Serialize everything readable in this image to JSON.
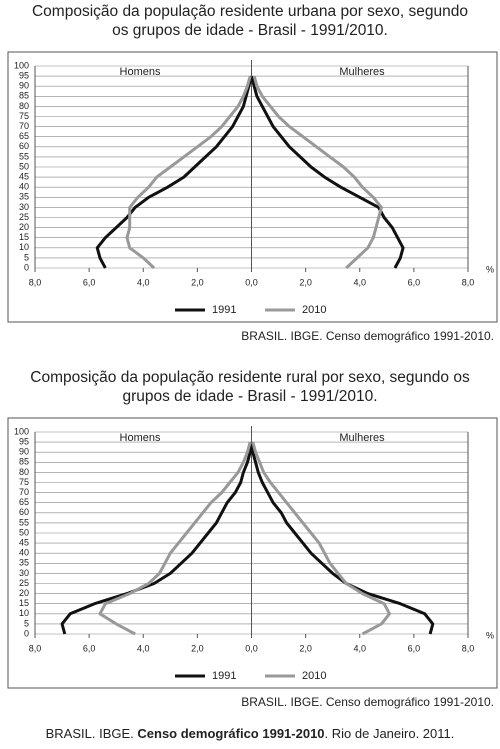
{
  "chart_data": [
    {
      "type": "line",
      "title": [
        "Composição da população residente urbana por sexo, segundo",
        "os grupos de idade - Brasil - 1991/2010."
      ],
      "left_label": "Homens",
      "right_label": "Mulheres",
      "x_unit": "%",
      "y": [
        0,
        5,
        10,
        15,
        20,
        25,
        30,
        35,
        40,
        45,
        50,
        55,
        60,
        65,
        70,
        75,
        80,
        85,
        90,
        95
      ],
      "ylim": [
        0,
        100
      ],
      "yticks": [
        0,
        5,
        10,
        15,
        20,
        25,
        30,
        35,
        40,
        45,
        50,
        55,
        60,
        65,
        70,
        75,
        80,
        85,
        90,
        95,
        100
      ],
      "xlim": [
        -8,
        8
      ],
      "xticks": [
        {
          "value": -8,
          "label": "8,0"
        },
        {
          "value": -6,
          "label": "6,0"
        },
        {
          "value": -4,
          "label": "4,0"
        },
        {
          "value": -2,
          "label": "2,0"
        },
        {
          "value": 0,
          "label": "0,0"
        },
        {
          "value": 2,
          "label": "2,0"
        },
        {
          "value": 4,
          "label": "4,0"
        },
        {
          "value": 6,
          "label": "6,0"
        },
        {
          "value": 8,
          "label": "8,0"
        }
      ],
      "grid": true,
      "series": [
        {
          "name": "1991",
          "color": "#111111",
          "men": [
            5.4,
            5.6,
            5.7,
            5.4,
            5.0,
            4.6,
            4.3,
            3.8,
            3.1,
            2.5,
            2.1,
            1.7,
            1.3,
            1.0,
            0.7,
            0.5,
            0.3,
            0.2,
            0.1,
            0
          ],
          "women": [
            5.3,
            5.5,
            5.6,
            5.4,
            5.2,
            4.9,
            4.7,
            4.0,
            3.3,
            2.7,
            2.2,
            1.8,
            1.4,
            1.1,
            0.8,
            0.6,
            0.4,
            0.2,
            0.1,
            0
          ]
        },
        {
          "name": "2010",
          "color": "#999999",
          "men": [
            3.6,
            4.0,
            4.5,
            4.6,
            4.5,
            4.5,
            4.5,
            4.2,
            3.8,
            3.5,
            3.0,
            2.5,
            2.0,
            1.5,
            1.1,
            0.8,
            0.5,
            0.3,
            0.15,
            0.05
          ],
          "women": [
            3.5,
            3.9,
            4.3,
            4.5,
            4.6,
            4.7,
            4.8,
            4.5,
            4.1,
            3.8,
            3.4,
            2.9,
            2.4,
            1.9,
            1.4,
            1.0,
            0.7,
            0.4,
            0.2,
            0.1
          ]
        }
      ],
      "source": "BRASIL. IBGE. Censo demográfico 1991-2010."
    },
    {
      "type": "line",
      "title": [
        "Composição da população residente rural por sexo, segundo os",
        "grupos de idade - Brasil - 1991/2010."
      ],
      "left_label": "Homens",
      "right_label": "Mulheres",
      "x_unit": "%",
      "y": [
        0,
        5,
        10,
        15,
        20,
        25,
        30,
        35,
        40,
        45,
        50,
        55,
        60,
        65,
        70,
        75,
        80,
        85,
        90,
        95
      ],
      "ylim": [
        0,
        100
      ],
      "yticks": [
        0,
        5,
        10,
        15,
        20,
        25,
        30,
        35,
        40,
        45,
        50,
        55,
        60,
        65,
        70,
        75,
        80,
        85,
        90,
        95,
        100
      ],
      "xlim": [
        -8,
        8
      ],
      "xticks": [
        {
          "value": -8,
          "label": "8,0"
        },
        {
          "value": -6,
          "label": "6,0"
        },
        {
          "value": -4,
          "label": "4,0"
        },
        {
          "value": -2,
          "label": "2,0"
        },
        {
          "value": 0,
          "label": "0,0"
        },
        {
          "value": 2,
          "label": "2,0"
        },
        {
          "value": 4,
          "label": "4,0"
        },
        {
          "value": 6,
          "label": "6,0"
        },
        {
          "value": 8,
          "label": "8,0"
        }
      ],
      "grid": true,
      "series": [
        {
          "name": "1991",
          "color": "#111111",
          "men": [
            6.9,
            7.0,
            6.7,
            5.8,
            4.6,
            3.6,
            3.0,
            2.6,
            2.2,
            1.9,
            1.6,
            1.3,
            1.1,
            0.9,
            0.6,
            0.4,
            0.3,
            0.15,
            0.05,
            0
          ],
          "women": [
            6.6,
            6.7,
            6.4,
            5.5,
            4.3,
            3.5,
            3.0,
            2.6,
            2.2,
            1.9,
            1.6,
            1.3,
            1.1,
            0.8,
            0.6,
            0.4,
            0.25,
            0.15,
            0.05,
            0
          ]
        },
        {
          "name": "2010",
          "color": "#999999",
          "men": [
            4.3,
            5.0,
            5.6,
            5.4,
            4.5,
            3.8,
            3.4,
            3.2,
            3.0,
            2.7,
            2.4,
            2.1,
            1.8,
            1.5,
            1.1,
            0.8,
            0.5,
            0.3,
            0.15,
            0.05
          ],
          "women": [
            4.1,
            4.8,
            5.1,
            4.9,
            4.1,
            3.5,
            3.2,
            2.9,
            2.7,
            2.5,
            2.2,
            1.9,
            1.6,
            1.3,
            1.0,
            0.7,
            0.45,
            0.3,
            0.15,
            0.05
          ]
        }
      ],
      "source": "BRASIL. IBGE. Censo demográfico 1991-2010."
    }
  ],
  "footer": [
    "BRASIL. IBGE. ",
    "Censo demográfico 1991-2010",
    ". Rio de Janeiro. 2011."
  ]
}
